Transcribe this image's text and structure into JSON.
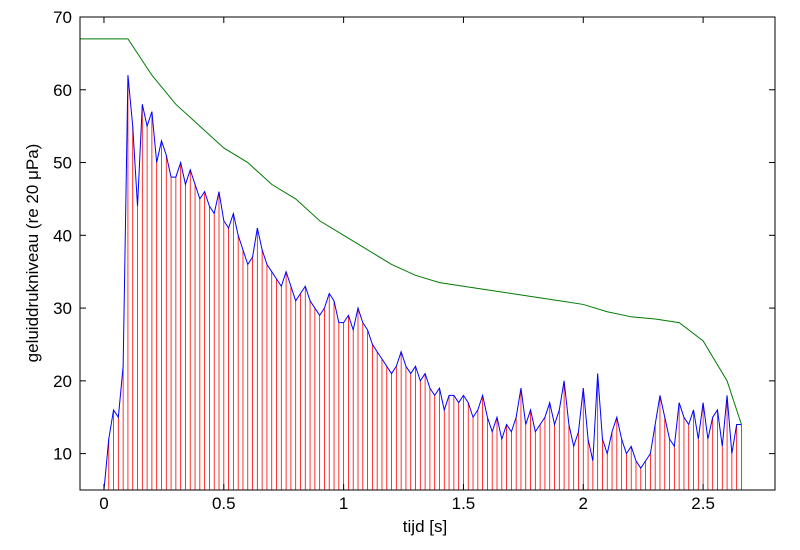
{
  "chart_data": {
    "type": "stem",
    "xlabel": "tijd  [s]",
    "ylabel": "geluiddrukniveau (re 20 μPa)",
    "xlim": [
      -0.1,
      2.8
    ],
    "ylim": [
      5,
      70
    ],
    "xticks": [
      0,
      0.5,
      1,
      1.5,
      2,
      2.5
    ],
    "yticks": [
      10,
      20,
      30,
      40,
      50,
      60,
      70
    ],
    "series": [
      {
        "color": "#0000ff",
        "stem_color": "#ff0000",
        "x": [
          0,
          0.02,
          0.04,
          0.06,
          0.08,
          0.1,
          0.12,
          0.14,
          0.16,
          0.18,
          0.2,
          0.22,
          0.24,
          0.26,
          0.28,
          0.3,
          0.32,
          0.34,
          0.36,
          0.38,
          0.4,
          0.42,
          0.44,
          0.46,
          0.48,
          0.5,
          0.52,
          0.54,
          0.56,
          0.58,
          0.6,
          0.62,
          0.64,
          0.66,
          0.68,
          0.7,
          0.72,
          0.74,
          0.76,
          0.78,
          0.8,
          0.82,
          0.84,
          0.86,
          0.88,
          0.9,
          0.92,
          0.94,
          0.96,
          0.98,
          1,
          1.02,
          1.04,
          1.06,
          1.08,
          1.1,
          1.12,
          1.14,
          1.16,
          1.18,
          1.2,
          1.22,
          1.24,
          1.26,
          1.28,
          1.3,
          1.32,
          1.34,
          1.36,
          1.38,
          1.4,
          1.42,
          1.44,
          1.46,
          1.48,
          1.5,
          1.52,
          1.54,
          1.56,
          1.58,
          1.6,
          1.62,
          1.64,
          1.66,
          1.68,
          1.7,
          1.72,
          1.74,
          1.76,
          1.78,
          1.8,
          1.82,
          1.84,
          1.86,
          1.88,
          1.9,
          1.92,
          1.94,
          1.96,
          1.98,
          2,
          2.02,
          2.04,
          2.06,
          2.08,
          2.1,
          2.12,
          2.14,
          2.16,
          2.18,
          2.2,
          2.22,
          2.24,
          2.26,
          2.28,
          2.3,
          2.32,
          2.34,
          2.36,
          2.38,
          2.4,
          2.42,
          2.44,
          2.46,
          2.48,
          2.5,
          2.52,
          2.54,
          2.56,
          2.58,
          2.6,
          2.62,
          2.64,
          2.66
        ],
        "values": [
          5,
          12,
          16,
          15,
          22,
          62,
          55,
          44,
          58,
          55,
          57,
          50,
          53,
          51,
          48,
          48,
          50,
          47,
          49,
          47,
          45,
          46,
          44,
          43,
          46,
          42,
          41,
          43,
          40,
          38,
          36,
          37,
          41,
          38,
          36,
          35,
          34,
          33,
          35,
          33,
          31,
          32,
          33,
          31,
          30,
          29,
          30,
          32,
          31,
          28,
          28,
          29,
          27,
          30,
          28,
          27,
          25,
          24,
          23,
          22,
          21,
          22,
          24,
          22,
          21,
          22,
          20,
          21,
          19,
          18,
          19,
          16,
          18,
          18,
          17,
          18,
          17,
          15,
          16,
          18,
          15,
          13,
          15,
          12,
          14,
          13,
          15,
          19,
          14,
          16,
          13,
          14,
          15,
          17,
          14,
          16,
          20,
          14,
          11,
          13,
          19,
          12,
          9,
          21,
          12,
          10,
          13,
          15,
          12,
          10,
          11,
          9,
          8,
          9,
          10,
          14,
          18,
          15,
          12,
          11,
          17,
          15,
          14,
          16,
          12,
          17,
          12,
          15,
          16,
          11,
          18,
          10,
          14,
          14
        ]
      },
      {
        "color": "#007a00",
        "x": [
          -0.1,
          0.1,
          0.2,
          0.3,
          0.4,
          0.5,
          0.6,
          0.7,
          0.8,
          0.9,
          1,
          1.1,
          1.2,
          1.3,
          1.4,
          1.5,
          1.6,
          1.7,
          1.8,
          1.9,
          2,
          2.1,
          2.2,
          2.3,
          2.4,
          2.5,
          2.6,
          2.66
        ],
        "values": [
          67,
          67,
          62,
          58,
          55,
          52,
          50,
          47,
          45,
          42,
          40,
          38,
          36,
          34.5,
          33.5,
          33,
          32.5,
          32,
          31.5,
          31,
          30.5,
          29.5,
          28.8,
          28.5,
          28,
          25.5,
          20,
          14
        ]
      }
    ]
  }
}
